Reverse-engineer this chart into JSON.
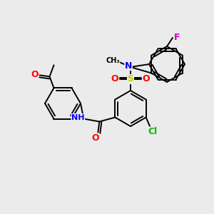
{
  "bg_color": "#ebebeb",
  "bond_color": "#000000",
  "atom_colors": {
    "O": "#ff0000",
    "N": "#0000ff",
    "S": "#cccc00",
    "Cl": "#00bb00",
    "F": "#cc00cc",
    "C": "#000000",
    "H": "#000000"
  },
  "figsize": [
    3.0,
    3.0
  ],
  "dpi": 100
}
